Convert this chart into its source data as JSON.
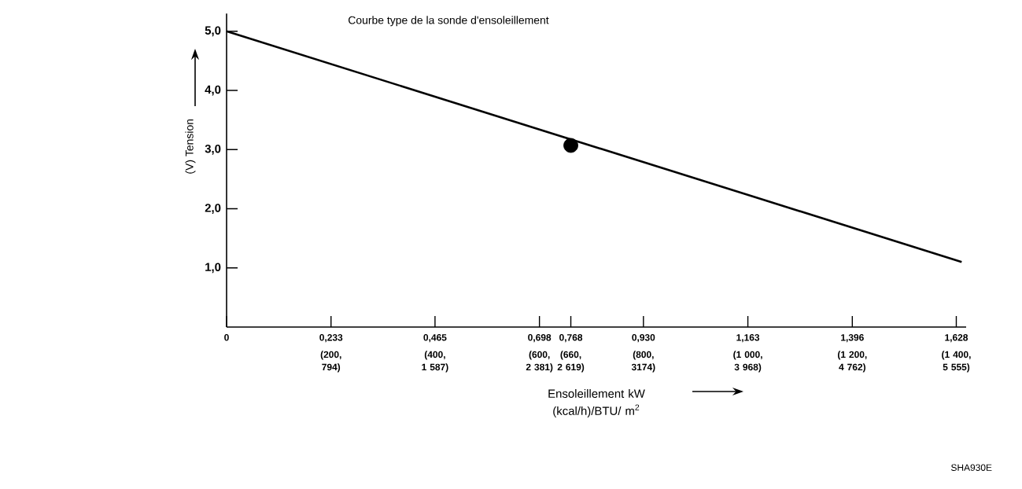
{
  "chart_data": {
    "type": "line",
    "title": "Courbe type de la sonde d'ensoleillement",
    "xlabel": "Ensoleillement kW (kcal/h)/BTU/ m$^{2}$",
    "ylabel": "(V) Tension",
    "xlim": [
      0,
      1.65
    ],
    "ylim": [
      0,
      5.3
    ],
    "xticks": [
      {
        "value": 0,
        "label": "0"
      },
      {
        "value": 0.233,
        "label": "0,233"
      },
      {
        "value": 0.465,
        "label": "0,465"
      },
      {
        "value": 0.698,
        "label": "0,698"
      },
      {
        "value": 0.768,
        "label": "0,768"
      },
      {
        "value": 0.93,
        "label": "0,930"
      },
      {
        "value": 1.163,
        "label": "1,163"
      },
      {
        "value": 1.396,
        "label": "1,396"
      },
      {
        "value": 1.628,
        "label": "1,628"
      }
    ],
    "yticks": [
      {
        "value": 1,
        "label": "1,0"
      },
      {
        "value": 2,
        "label": "2,0"
      },
      {
        "value": 3,
        "label": "3,0"
      },
      {
        "value": 4,
        "label": "4,0"
      },
      {
        "value": 5,
        "label": "5,0"
      }
    ],
    "series": [
      {
        "color": "#000000",
        "x": [
          0,
          1.64
        ],
        "values": [
          5.0,
          1.1
        ],
        "marker": "none"
      },
      {
        "type": "scatter",
        "color": "#000000",
        "x": [
          0.768
        ],
        "values": [
          3.07
        ],
        "marker": "circle"
      }
    ],
    "annotations": [
      "(200, 794)",
      "(400, 1 587)",
      "(600, 2 381)",
      "(660, 2 619)",
      "(800, 3174)",
      "(1 000, 3 968)",
      "(1 200, 4 762)",
      "(1 400, 5 555)",
      "SHA930E"
    ]
  }
}
